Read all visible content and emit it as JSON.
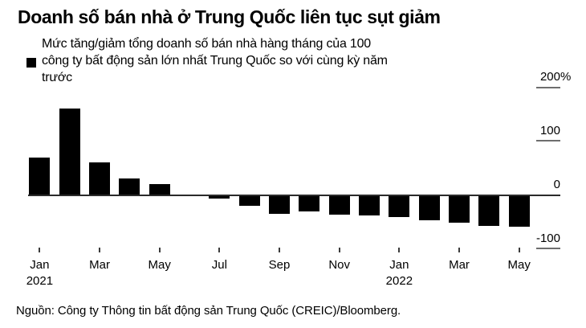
{
  "header": {
    "title": "Doanh số bán nhà ở Trung Quốc liên tục sụt giảm"
  },
  "legend": {
    "marker_color": "#000000",
    "lines": [
      "Mức tăng/giảm tổng doanh số bán nhà hàng tháng của 100",
      "công ty bất động sản lớn nhất Trung Quốc so với cùng kỳ năm",
      "trước"
    ]
  },
  "source": {
    "text": "Nguồn: Công ty Thông tin bất động sản Trung Quốc (CREIC)/Bloomberg."
  },
  "chart_data": {
    "type": "bar",
    "title": "Doanh số bán nhà ở Trung Quốc liên tục sụt giảm",
    "subtitle": "Mức tăng/giảm tổng doanh số bán nhà hàng tháng của 100 công ty bất động sản lớn nhất Trung Quốc so với cùng kỳ năm trước",
    "unit": "% year-over-year",
    "bar_color": "#000000",
    "ylim": [
      -100,
      200
    ],
    "legend_position": "top-left",
    "grid": "right-edge tick dashes only",
    "categories": [
      "Jan 2021",
      "Feb 2021",
      "Mar 2021",
      "Apr 2021",
      "May 2021",
      "Jun 2021",
      "Jul 2021",
      "Aug 2021",
      "Sep 2021",
      "Oct 2021",
      "Nov 2021",
      "Dec 2021",
      "Jan 2022",
      "Feb 2022",
      "Mar 2022",
      "Apr 2022",
      "May 2022"
    ],
    "values": [
      70,
      160,
      60,
      31,
      20,
      -2,
      -7,
      -20,
      -36,
      -31,
      -37,
      -38,
      -41,
      -47,
      -52,
      -58,
      -59
    ],
    "y_axis": {
      "ticks": [
        {
          "label": "200",
          "suffix": "%",
          "value": 200
        },
        {
          "label": "100",
          "suffix": "",
          "value": 100
        },
        {
          "label": "0",
          "suffix": "",
          "value": 0
        },
        {
          "label": "-100",
          "suffix": "",
          "value": -100
        }
      ]
    },
    "x_axis": {
      "ticks": [
        {
          "index": 0,
          "label": "Jan",
          "year": "2021"
        },
        {
          "index": 2,
          "label": "Mar",
          "year": ""
        },
        {
          "index": 4,
          "label": "May",
          "year": ""
        },
        {
          "index": 6,
          "label": "Jul",
          "year": ""
        },
        {
          "index": 8,
          "label": "Sep",
          "year": ""
        },
        {
          "index": 10,
          "label": "Nov",
          "year": ""
        },
        {
          "index": 12,
          "label": "Jan",
          "year": "2022"
        },
        {
          "index": 14,
          "label": "Mar",
          "year": ""
        },
        {
          "index": 16,
          "label": "May",
          "year": ""
        }
      ]
    },
    "source": "Nguồn: Công ty Thông tin bất động sản Trung Quốc (CREIC)/Bloomberg."
  }
}
